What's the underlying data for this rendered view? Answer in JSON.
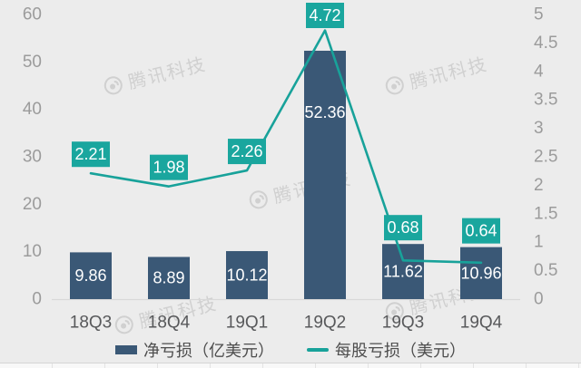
{
  "watermark": {
    "text": "腾讯科技"
  },
  "colors": {
    "background": "#ECECEC",
    "bar": "#3A5876",
    "line": "#18A29A",
    "label_box": "#1AA69E",
    "bar_label_text": "#FFFFFF",
    "axis_text": "#9B9B9B",
    "x_label_text": "#58595B",
    "legend_text": "#4D4D4D",
    "zero_line": "#D8D8D8"
  },
  "chart_data": {
    "type": "bar+line",
    "categories": [
      "18Q3",
      "18Q4",
      "19Q1",
      "19Q2",
      "19Q3",
      "19Q4"
    ],
    "series": [
      {
        "name": "净亏损（亿美元）",
        "type": "bar",
        "axis": "left",
        "values": [
          9.86,
          8.89,
          10.12,
          52.36,
          11.62,
          10.96
        ]
      },
      {
        "name": "每股亏损（美元）",
        "type": "line",
        "axis": "right",
        "values": [
          2.21,
          1.98,
          2.26,
          4.72,
          0.68,
          0.64
        ]
      }
    ],
    "left_axis": {
      "min": 0,
      "max": 60,
      "ticks": [
        "0",
        "10",
        "20",
        "30",
        "40",
        "50",
        "60"
      ]
    },
    "right_axis": {
      "min": 0,
      "max": 5,
      "ticks": [
        "0",
        "0.5",
        "1",
        "1.5",
        "2",
        "2.5",
        "3",
        "3.5",
        "4",
        "4.5",
        "5"
      ]
    },
    "grid": false,
    "legend_position": "bottom",
    "title": ""
  }
}
